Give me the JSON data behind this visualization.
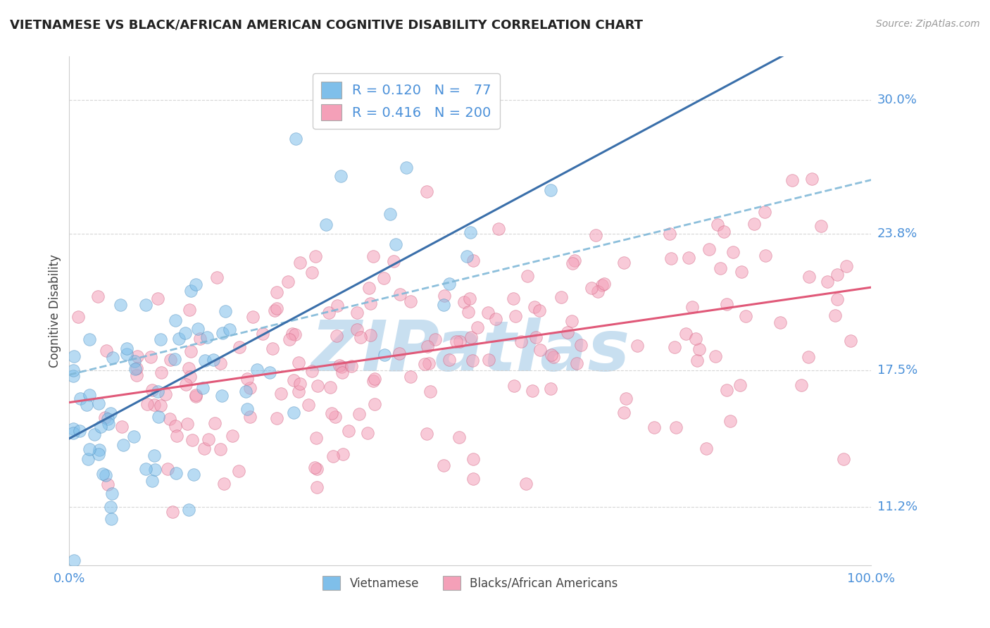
{
  "title": "VIETNAMESE VS BLACK/AFRICAN AMERICAN COGNITIVE DISABILITY CORRELATION CHART",
  "source": "Source: ZipAtlas.com",
  "ylabel": "Cognitive Disability",
  "watermark": "ZIPatlas",
  "yticks": [
    0.112,
    0.175,
    0.238,
    0.3
  ],
  "ytick_labels": [
    "11.2%",
    "17.5%",
    "23.8%",
    "30.0%"
  ],
  "xlim": [
    0.0,
    1.0
  ],
  "ylim": [
    0.085,
    0.32
  ],
  "xtick_labels": [
    "0.0%",
    "100.0%"
  ],
  "blue_scatter_color": "#7fbfea",
  "blue_scatter_edge": "#5090c0",
  "pink_scatter_color": "#f4a0b8",
  "pink_scatter_edge": "#d06080",
  "trend_blue_solid": "#3a6faa",
  "trend_pink_solid": "#e05878",
  "trend_blue_dashed": "#80b8d8",
  "grid_color": "#cccccc",
  "title_color": "#222222",
  "axis_label_color": "#444444",
  "tick_color": "#4a90d9",
  "source_color": "#999999",
  "watermark_color": "#c8dff0",
  "background_color": "#ffffff",
  "viet_R": 0.12,
  "viet_N": 77,
  "black_R": 0.416,
  "black_N": 200
}
